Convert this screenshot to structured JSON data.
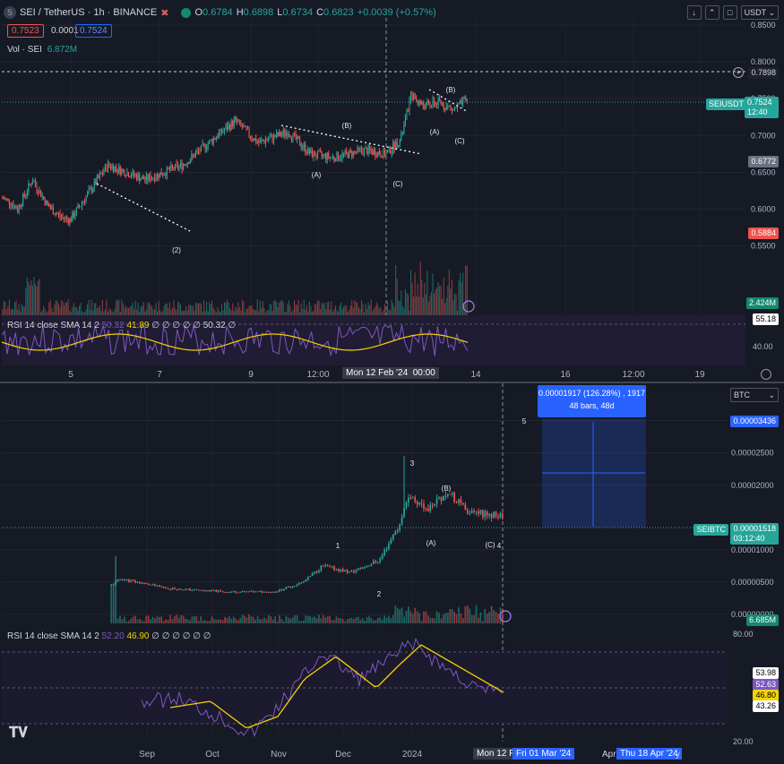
{
  "top": {
    "symbol": "SEI / TetherUS · 1h · BINANCE",
    "ohlc": {
      "o": "O",
      "o_val": "0.6784",
      "h": "H",
      "h_val": "0.6898",
      "l": "L",
      "l_val": "0.6734",
      "c": "C",
      "c_val": "0.6823",
      "chg": "+0.0039 (+0.57%)"
    },
    "sell_price": "0.7523",
    "spread": "0.0001",
    "buy_price": "0.7524",
    "volume_label": "Vol · SEI",
    "volume_val": "6.872M",
    "currency": "USDT",
    "price_ticks": [
      "0.8500",
      "0.8000",
      "0.7500",
      "0.7000",
      "0.6500",
      "0.6000",
      "0.5500"
    ],
    "rsi_ticks": [
      "40.00"
    ],
    "tags": {
      "cross": "0.7898",
      "last_name": "SEIUSDT",
      "last": "0.7524",
      "countdown": "12:40",
      "mid": "0.6772",
      "low": "0.5884",
      "vol": "2.424M",
      "rsi": "55.18"
    },
    "rsi_legend": {
      "label": "RSI 14 close SMA 14 2",
      "v1": "50.32",
      "v2": "41.89",
      "v3": "50.32",
      "dots": "∅ ∅ ∅ ∅ ∅"
    },
    "time_ticks": [
      "5",
      "7",
      "9",
      "12:00",
      "14",
      "16",
      "12:00",
      "19"
    ],
    "crosshair_time": "Mon 12 Feb '24",
    "crosshair_time2": "00:00",
    "wave_labels": {
      "w2": "(2)",
      "a1": "(A)",
      "b1": "(B)",
      "c1": "(C)",
      "a2": "(A)",
      "b2": "(B)",
      "c2": "(C)"
    },
    "colors": {
      "up": "#26a69a",
      "down": "#ef5350",
      "rsi": "#7e57c2",
      "sma": "#f5d300"
    }
  },
  "bottom": {
    "currency": "BTC",
    "price_ticks": [
      "0.00003000",
      "0.00002500",
      "0.00002000",
      "0.00001000",
      "0.00000500",
      "0.00000000"
    ],
    "measure": {
      "line1": "0.00001917 (126.28%) , 1917",
      "line2": "48 bars, 48d"
    },
    "tags": {
      "top": "0.00003436",
      "last_name": "SEIBTC",
      "last": "0.00001518",
      "countdown": "03:12:40",
      "vol": "6.685M",
      "r1": "53.98",
      "r2": "52.63",
      "r3": "46.80",
      "r4": "43.26"
    },
    "rsi_ticks": [
      "80.00",
      "20.00"
    ],
    "rsi_legend": {
      "label": "RSI 14 close SMA 14 2",
      "v1": "52.20",
      "v2": "46.90",
      "dots": "∅ ∅ ∅ ∅ ∅ ∅"
    },
    "time_ticks": [
      "Sep",
      "Oct",
      "Nov",
      "Dec",
      "2024"
    ],
    "crosshair_time": "Mon 12 Fe",
    "date_tag1": "Fri 01 Mar '24",
    "date_tag2": "Thu 18 Apr '24",
    "apr": "Apr",
    "y": "y",
    "wave_labels": {
      "w1": "1",
      "w2": "2",
      "w3": "3",
      "w4": "4",
      "w5": "5",
      "a": "(A)",
      "b": "(B)",
      "c": "(C)"
    }
  },
  "chart_data": [
    {
      "type": "candlestick",
      "title": "SEI / TetherUS · 1h · BINANCE",
      "ylim": [
        0.53,
        0.85
      ],
      "x": [
        "5",
        "7",
        "9",
        "12:00",
        "Mon 12 Feb '24 00:00",
        "14",
        "16",
        "12:00",
        "19"
      ],
      "close_path": [
        [
          0,
          0.615
        ],
        [
          0.05,
          0.61
        ],
        [
          0.1,
          0.6
        ],
        [
          0.2,
          0.64
        ],
        [
          0.3,
          0.605
        ],
        [
          0.38,
          0.59
        ],
        [
          0.45,
          0.585
        ],
        [
          0.55,
          0.615
        ],
        [
          0.7,
          0.66
        ],
        [
          0.95,
          0.64
        ],
        [
          1.2,
          0.66
        ],
        [
          1.4,
          0.695
        ],
        [
          1.55,
          0.72
        ],
        [
          1.7,
          0.69
        ],
        [
          1.9,
          0.705
        ],
        [
          2.05,
          0.675
        ],
        [
          2.2,
          0.67
        ],
        [
          2.4,
          0.68
        ],
        [
          2.55,
          0.675
        ],
        [
          2.65,
          0.695
        ],
        [
          2.72,
          0.755
        ],
        [
          2.8,
          0.74
        ],
        [
          2.9,
          0.745
        ],
        [
          3.0,
          0.735
        ],
        [
          3.1,
          0.75
        ]
      ],
      "volume_max": "2.424M",
      "rsi": {
        "sma": 50.32,
        "value": 55.18
      }
    },
    {
      "type": "candlestick",
      "title": "SEIBTC",
      "ylim": [
        0,
        3.3e-05
      ],
      "x": [
        "Sep",
        "Oct",
        "Nov",
        "Dec",
        "2024"
      ],
      "close_path": [
        [
          0,
          4.5e-06
        ],
        [
          0.1,
          5.5e-06
        ],
        [
          0.6,
          4e-06
        ],
        [
          1.2,
          3.5e-06
        ],
        [
          1.7,
          3.5e-06
        ],
        [
          2.0,
          5e-06
        ],
        [
          2.2,
          7.5e-06
        ],
        [
          2.5,
          6.5e-06
        ],
        [
          2.8,
          8.5e-06
        ],
        [
          3.0,
          1.4e-05
        ],
        [
          3.1,
          1.85e-05
        ],
        [
          3.3,
          1.6e-05
        ],
        [
          3.5,
          1.9e-05
        ],
        [
          3.7,
          1.6e-05
        ],
        [
          3.9,
          1.55e-05
        ],
        [
          4.1,
          1.518e-05
        ]
      ],
      "measure_target": 3.436e-05,
      "rsi": {
        "values": [
          52.2,
          46.9
        ],
        "tags": [
          53.98,
          52.63,
          46.8,
          43.26
        ]
      }
    }
  ]
}
